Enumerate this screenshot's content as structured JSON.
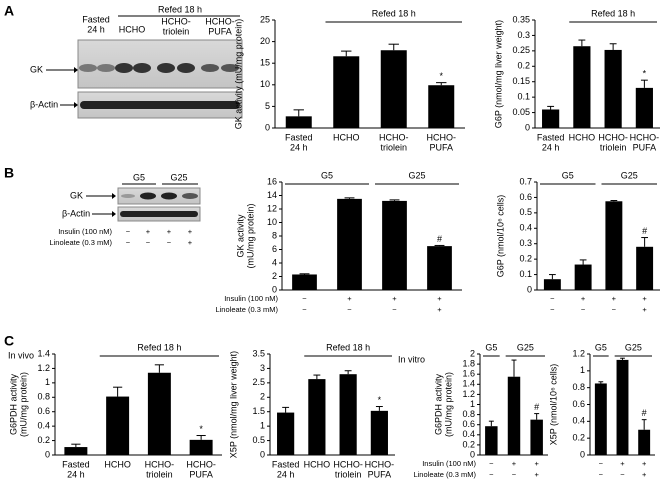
{
  "panels": [
    "A",
    "B",
    "C"
  ],
  "section_labels": [
    "In vivo",
    "In vitro"
  ],
  "blots": [
    {
      "lanes": [
        [
          "Fasted",
          "24 h"
        ],
        [
          "HCHO"
        ],
        [
          "HCHO-",
          "triolein"
        ],
        [
          "HCHO-",
          "PUFA"
        ]
      ],
      "group": "Refed 18 h",
      "rows": [
        "GK",
        "β-Actin"
      ]
    },
    {
      "groups": [
        "G5",
        "G25"
      ],
      "rows": [
        "GK",
        "β-Actin"
      ],
      "treatments": [
        {
          "label": "Insulin (100 nM)",
          "signs": [
            "−",
            "+",
            "+",
            "+"
          ]
        },
        {
          "label": "Linoleate (0.3 mM)",
          "signs": [
            "−",
            "−",
            "−",
            "+"
          ]
        }
      ]
    }
  ],
  "chart_data": [
    {
      "type": "bar",
      "ylabel": [
        "GK activity (mU/mg protein)"
      ],
      "categories": [
        [
          "Fasted",
          "24 h"
        ],
        [
          "HCHO"
        ],
        [
          "HCHO-",
          "triolein"
        ],
        [
          "HCHO-",
          "PUFA"
        ]
      ],
      "values": [
        2.7,
        16.6,
        18.0,
        9.9
      ],
      "errors": [
        1.5,
        1.2,
        1.4,
        0.6
      ],
      "markers": [
        null,
        null,
        null,
        "*"
      ],
      "groups": [
        "Refed 18 h"
      ],
      "color": "#000000",
      "ylim": [
        0,
        25
      ],
      "yticks": [
        0,
        5,
        10,
        15,
        20,
        25
      ]
    },
    {
      "type": "bar",
      "ylabel": [
        "G6P (nmol/mg liver weight)"
      ],
      "categories": [
        [
          "Fasted",
          "24 h"
        ],
        [
          "HCHO"
        ],
        [
          "HCHO-",
          "triolein"
        ],
        [
          "HCHO-",
          "PUFA"
        ]
      ],
      "values": [
        0.06,
        0.265,
        0.253,
        0.13
      ],
      "errors": [
        0.01,
        0.02,
        0.02,
        0.025
      ],
      "markers": [
        null,
        null,
        null,
        "*"
      ],
      "groups": [
        "Refed 18 h"
      ],
      "color": "#000000",
      "ylim": [
        0,
        0.35
      ],
      "yticks": [
        0,
        0.05,
        0.1,
        0.15,
        0.2,
        0.25,
        0.3,
        0.35
      ]
    },
    {
      "type": "bar",
      "ylabel": [
        "GK activity",
        "(mU/mg protein)"
      ],
      "treatments": [
        {
          "label": "Insulin (100 nM)",
          "signs": [
            "−",
            "+",
            "+",
            "+"
          ]
        },
        {
          "label": "Linoleate (0.3 mM)",
          "signs": [
            "−",
            "−",
            "−",
            "+"
          ]
        }
      ],
      "values": [
        2.3,
        13.5,
        13.2,
        6.5
      ],
      "errors": [
        0.1,
        0.15,
        0.15,
        0.1
      ],
      "markers": [
        null,
        null,
        null,
        "#"
      ],
      "groups": [
        "G5",
        "G25"
      ],
      "color": "#000000",
      "ylim": [
        0,
        16
      ],
      "yticks": [
        0,
        2,
        4,
        6,
        8,
        10,
        12,
        14,
        16
      ]
    },
    {
      "type": "bar",
      "ylabel": [
        "G6P (nmol/10⁶ cells)"
      ],
      "treatments": [
        {
          "signs": [
            "−",
            "+",
            "+",
            "+"
          ]
        },
        {
          "signs": [
            "−",
            "−",
            "−",
            "+"
          ]
        }
      ],
      "values": [
        0.07,
        0.165,
        0.575,
        0.28
      ],
      "errors": [
        0.03,
        0.03,
        0.005,
        0.06
      ],
      "markers": [
        null,
        null,
        null,
        "#"
      ],
      "groups": [
        "G5",
        "G25"
      ],
      "color": "#000000",
      "ylim": [
        0,
        0.7
      ],
      "yticks": [
        0,
        0.1,
        0.2,
        0.3,
        0.4,
        0.5,
        0.6,
        0.7
      ]
    },
    {
      "type": "bar",
      "ylabel": [
        "G6PDH activity",
        "(mU/mg protein)"
      ],
      "categories": [
        [
          "Fasted",
          "24 h"
        ],
        [
          "HCHO"
        ],
        [
          "HCHO-",
          "triolein"
        ],
        [
          "HCHO-",
          "PUFA"
        ]
      ],
      "values": [
        0.11,
        0.81,
        1.14,
        0.21
      ],
      "errors": [
        0.04,
        0.13,
        0.11,
        0.06
      ],
      "markers": [
        null,
        null,
        null,
        "*"
      ],
      "groups": [
        "Refed 18 h"
      ],
      "color": "#000000",
      "ylim": [
        0,
        1.4
      ],
      "yticks": [
        0,
        0.2,
        0.4,
        0.6,
        0.8,
        1,
        1.2,
        1.4
      ]
    },
    {
      "type": "bar",
      "ylabel": [
        "X5P (nmol/mg liver weight)"
      ],
      "categories": [
        [
          "Fasted",
          "24 h"
        ],
        [
          "HCHO"
        ],
        [
          "HCHO-",
          "triolein"
        ],
        [
          "HCHO-",
          "PUFA"
        ]
      ],
      "values": [
        1.47,
        2.63,
        2.8,
        1.53
      ],
      "errors": [
        0.18,
        0.14,
        0.12,
        0.15
      ],
      "markers": [
        null,
        null,
        null,
        "*"
      ],
      "groups": [
        "Refed 18 h"
      ],
      "color": "#000000",
      "ylim": [
        0,
        3.5
      ],
      "yticks": [
        0,
        0.5,
        1,
        1.5,
        2,
        2.5,
        3,
        3.5
      ]
    },
    {
      "type": "bar",
      "ylabel": [
        "G6PDH activity",
        "(mU/mg protein)"
      ],
      "treatments": [
        {
          "label": "Insulin (100 nM)",
          "signs": [
            "−",
            "+",
            "+"
          ]
        },
        {
          "label": "Linoleate (0.3 mM)",
          "signs": [
            "−",
            "−",
            "+"
          ]
        }
      ],
      "values": [
        0.57,
        1.55,
        0.7
      ],
      "errors": [
        0.1,
        0.33,
        0.12
      ],
      "markers": [
        null,
        null,
        "#"
      ],
      "groups": [
        "G5",
        "G25"
      ],
      "color": "#000000",
      "ylim": [
        0,
        2
      ],
      "yticks": [
        0,
        0.2,
        0.4,
        0.6,
        0.8,
        1,
        1.2,
        1.4,
        1.6,
        1.8,
        2
      ]
    },
    {
      "type": "bar",
      "ylabel": [
        "X5P (nmol/10⁶ cells)"
      ],
      "treatments": [
        {
          "signs": [
            "−",
            "+",
            "+"
          ]
        },
        {
          "signs": [
            "−",
            "−",
            "+"
          ]
        }
      ],
      "values": [
        0.85,
        1.13,
        0.3
      ],
      "errors": [
        0.02,
        0.02,
        0.12
      ],
      "markers": [
        null,
        null,
        "#"
      ],
      "groups": [
        "G5",
        "G25"
      ],
      "color": "#000000",
      "ylim": [
        0,
        1.2
      ],
      "yticks": [
        0,
        0.2,
        0.4,
        0.6,
        0.8,
        1,
        1.2
      ]
    }
  ]
}
